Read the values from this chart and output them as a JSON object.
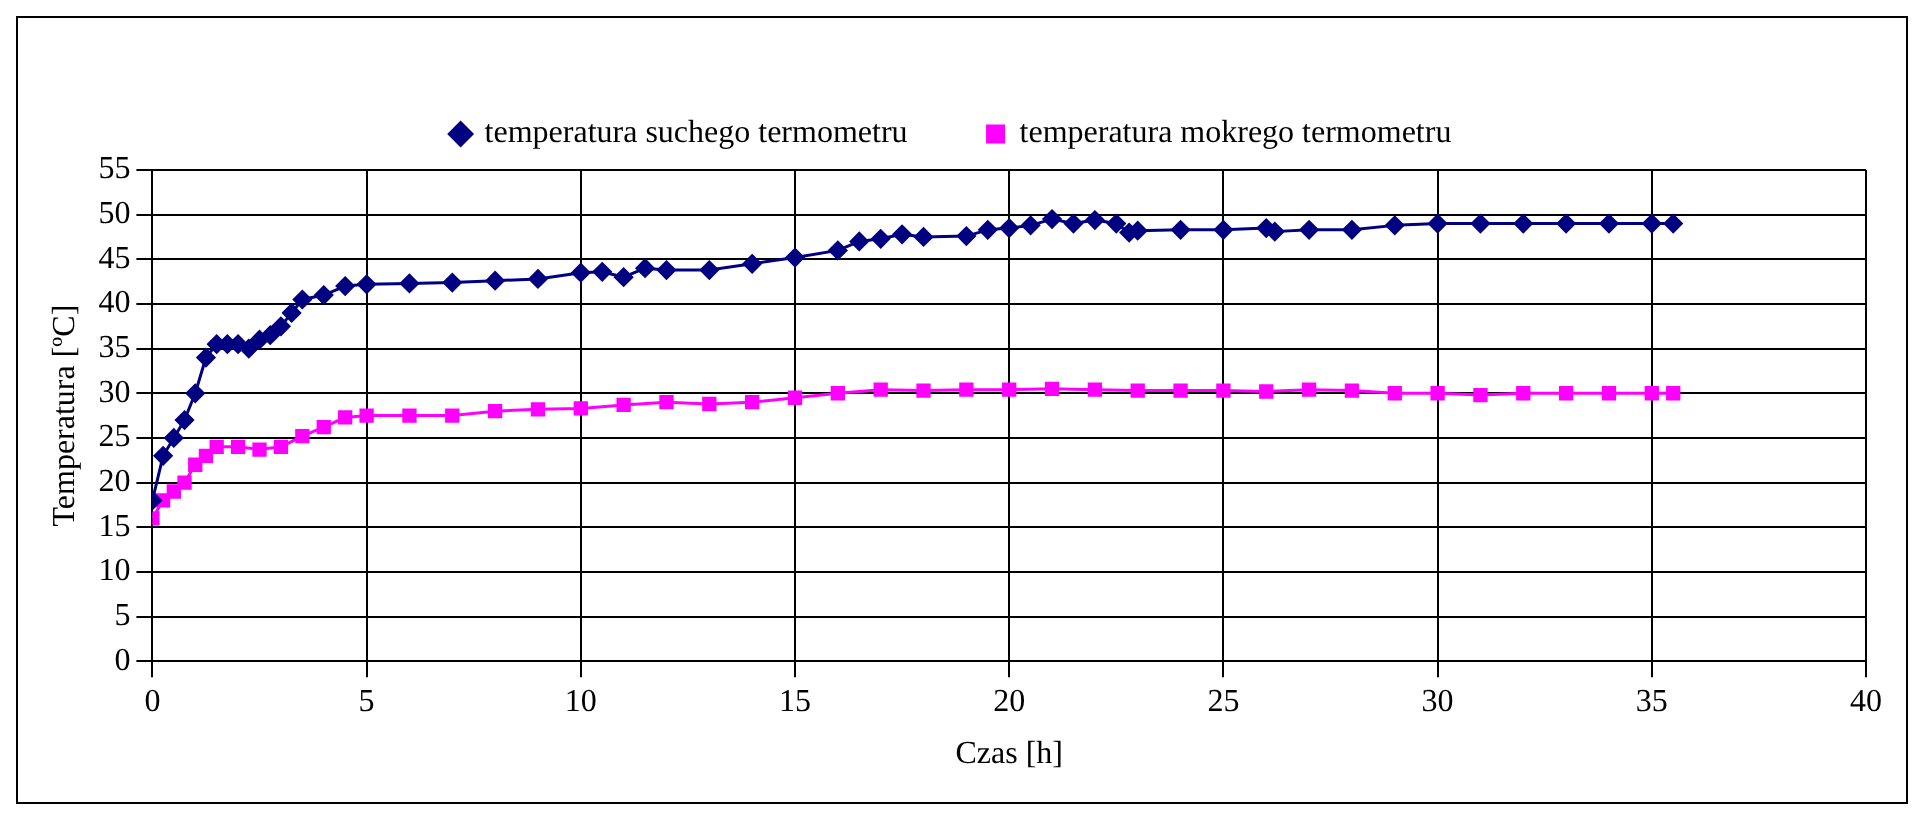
{
  "chart_data": {
    "type": "line",
    "xlabel": "Czas [h]",
    "ylabel": "Temperatura [ºC]",
    "xlim": [
      0,
      40
    ],
    "xticks": [
      0,
      5,
      10,
      15,
      20,
      25,
      30,
      35,
      40
    ],
    "ylim": [
      0,
      55
    ],
    "yticks": [
      0,
      5,
      10,
      15,
      20,
      25,
      30,
      35,
      40,
      45,
      50,
      55
    ],
    "grid": true,
    "legend": "top",
    "line_style": "solid",
    "series": [
      {
        "name": "temperatura suchego termometru",
        "color": "#000080",
        "marker": "diamond",
        "x": [
          0,
          0.25,
          0.5,
          0.75,
          1,
          1.25,
          1.5,
          1.75,
          2,
          2.25,
          2.5,
          2.75,
          3,
          3.25,
          3.5,
          4,
          4.5,
          5,
          6,
          7,
          8,
          9,
          10,
          10.5,
          11,
          11.5,
          12,
          13,
          14,
          15,
          16,
          16.5,
          17,
          17.5,
          18,
          19,
          19.5,
          20,
          20.5,
          21,
          21.5,
          22,
          22.5,
          22.8,
          23,
          24,
          25,
          26,
          26.2,
          27,
          28,
          29,
          30,
          31,
          32,
          33,
          34,
          35,
          35.5
        ],
        "values": [
          18,
          23,
          25,
          27,
          30,
          34,
          35.5,
          35.5,
          35.5,
          35,
          36,
          36.5,
          37.5,
          39,
          40.5,
          41,
          42,
          42.2,
          42.3,
          42.4,
          42.6,
          42.8,
          43.5,
          43.6,
          43,
          44,
          43.8,
          43.8,
          44.5,
          45.2,
          46,
          47,
          47.3,
          47.8,
          47.5,
          47.6,
          48.3,
          48.5,
          48.8,
          49.5,
          49,
          49.4,
          49,
          48,
          48.2,
          48.3,
          48.3,
          48.5,
          48.1,
          48.3,
          48.3,
          48.8,
          49,
          49,
          49,
          49,
          49,
          49,
          49
        ]
      },
      {
        "name": "temperatura mokrego termometru",
        "color": "#ff00ff",
        "marker": "square",
        "x": [
          0,
          0.25,
          0.5,
          0.75,
          1,
          1.25,
          1.5,
          2,
          2.5,
          3,
          3.5,
          4,
          4.5,
          5,
          6,
          7,
          8,
          9,
          10,
          11,
          12,
          13,
          14,
          15,
          16,
          17,
          18,
          19,
          20,
          21,
          22,
          23,
          24,
          25,
          26,
          27,
          28,
          29,
          30,
          31,
          32,
          33,
          34,
          35,
          35.5
        ],
        "values": [
          16,
          18,
          19,
          20,
          22,
          23,
          24,
          24,
          23.7,
          24,
          25.2,
          26.2,
          27.3,
          27.5,
          27.5,
          27.5,
          28,
          28.2,
          28.3,
          28.7,
          29,
          28.8,
          29,
          29.5,
          30,
          30.4,
          30.3,
          30.4,
          30.4,
          30.5,
          30.4,
          30.3,
          30.3,
          30.3,
          30.2,
          30.4,
          30.3,
          30,
          30,
          29.8,
          30,
          30,
          30,
          30,
          30
        ]
      }
    ]
  }
}
